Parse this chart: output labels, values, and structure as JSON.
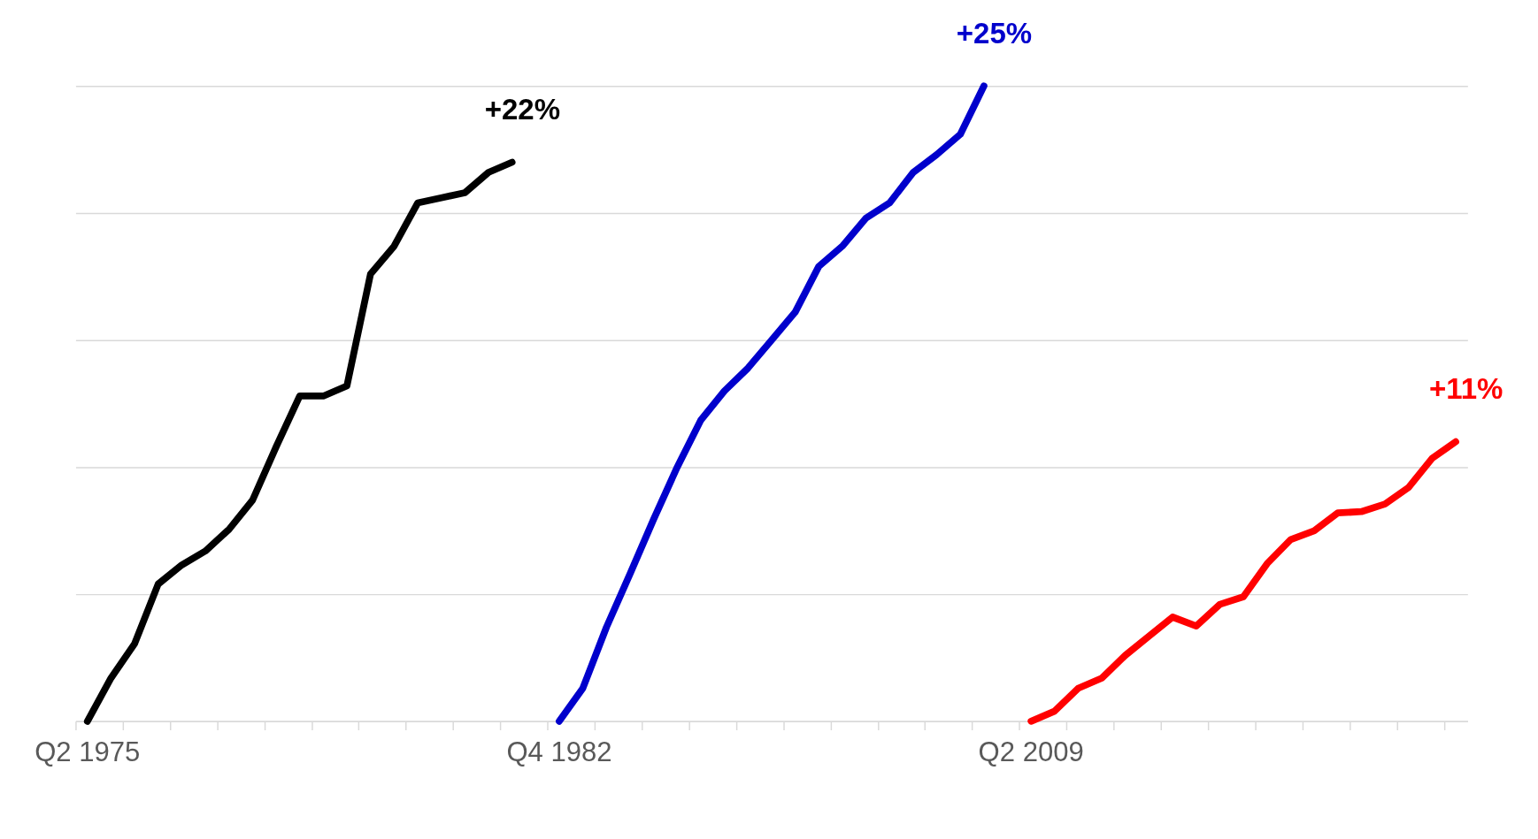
{
  "chart_data": {
    "type": "line",
    "categories": [
      "Q2 1975",
      null,
      null,
      null,
      null,
      null,
      null,
      null,
      null,
      null,
      null,
      null,
      null,
      null,
      null,
      null,
      null,
      null,
      null,
      null,
      "Q4 1982",
      null,
      null,
      null,
      null,
      null,
      null,
      null,
      null,
      null,
      null,
      null,
      null,
      null,
      null,
      null,
      null,
      null,
      null,
      null,
      "Q2 2009",
      null,
      null,
      null,
      null,
      null,
      null,
      null,
      null,
      null,
      null,
      null,
      null,
      null,
      null,
      null,
      null,
      null,
      null
    ],
    "series": [
      {
        "color": "#000000",
        "values": [
          0,
          1.7,
          3.05,
          5.4,
          6.15,
          6.7,
          7.55,
          8.7,
          10.8,
          12.8,
          12.8,
          13.2,
          17.6,
          18.7,
          20.4,
          20.6,
          20.8,
          21.6,
          22,
          null,
          null,
          null,
          null,
          null,
          null,
          null,
          null,
          null,
          null,
          null,
          null,
          null,
          null,
          null,
          null,
          null,
          null,
          null,
          null,
          null,
          null,
          null,
          null,
          null,
          null,
          null,
          null,
          null,
          null,
          null,
          null,
          null,
          null,
          null,
          null,
          null,
          null,
          null,
          null
        ],
        "value_labels": [
          null,
          null,
          null,
          null,
          null,
          null,
          null,
          null,
          null,
          null,
          null,
          null,
          null,
          null,
          null,
          null,
          null,
          null,
          "+22%",
          null,
          null,
          null,
          null,
          null,
          null,
          null,
          null,
          null,
          null,
          null,
          null,
          null,
          null,
          null,
          null,
          null,
          null,
          null,
          null,
          null,
          null,
          null,
          null,
          null,
          null,
          null,
          null,
          null,
          null,
          null,
          null,
          null,
          null,
          null,
          null,
          null,
          null,
          null,
          null
        ]
      },
      {
        "color": "#0000cc",
        "values": [
          null,
          null,
          null,
          null,
          null,
          null,
          null,
          null,
          null,
          null,
          null,
          null,
          null,
          null,
          null,
          null,
          null,
          null,
          null,
          null,
          0,
          1.3,
          3.7,
          5.8,
          7.95,
          10,
          11.85,
          13,
          13.9,
          15,
          16.1,
          17.9,
          18.7,
          19.8,
          20.4,
          21.6,
          22.3,
          23.1,
          25,
          null,
          null,
          null,
          null,
          null,
          null,
          null,
          null,
          null,
          null,
          null,
          null,
          null,
          null,
          null,
          null,
          null,
          null,
          null,
          null
        ],
        "value_labels": [
          null,
          null,
          null,
          null,
          null,
          null,
          null,
          null,
          null,
          null,
          null,
          null,
          null,
          null,
          null,
          null,
          null,
          null,
          null,
          null,
          null,
          null,
          null,
          null,
          null,
          null,
          null,
          null,
          null,
          null,
          null,
          null,
          null,
          null,
          null,
          null,
          null,
          null,
          "+25%",
          null,
          null,
          null,
          null,
          null,
          null,
          null,
          null,
          null,
          null,
          null,
          null,
          null,
          null,
          null,
          null,
          null,
          null,
          null,
          null
        ]
      },
      {
        "color": "#ff0000",
        "values": [
          null,
          null,
          null,
          null,
          null,
          null,
          null,
          null,
          null,
          null,
          null,
          null,
          null,
          null,
          null,
          null,
          null,
          null,
          null,
          null,
          null,
          null,
          null,
          null,
          null,
          null,
          null,
          null,
          null,
          null,
          null,
          null,
          null,
          null,
          null,
          null,
          null,
          null,
          null,
          null,
          0,
          0.4,
          1.3,
          1.7,
          2.6,
          3.35,
          4.1,
          3.75,
          4.6,
          4.9,
          6.2,
          7.15,
          7.5,
          8.2,
          8.25,
          8.55,
          9.2,
          10.35,
          11
        ],
        "value_labels": [
          null,
          null,
          null,
          null,
          null,
          null,
          null,
          null,
          null,
          null,
          null,
          null,
          null,
          null,
          null,
          null,
          null,
          null,
          null,
          null,
          null,
          null,
          null,
          null,
          null,
          null,
          null,
          null,
          null,
          null,
          null,
          null,
          null,
          null,
          null,
          null,
          null,
          null,
          null,
          null,
          null,
          null,
          null,
          null,
          null,
          null,
          null,
          null,
          null,
          null,
          null,
          null,
          null,
          null,
          null,
          null,
          null,
          null,
          "+11%"
        ]
      }
    ],
    "ylim": [
      0,
      25
    ],
    "yticks": [
      {
        "value": 0,
        "label": null
      },
      {
        "value": 5,
        "label": null
      },
      {
        "value": 10,
        "label": null
      },
      {
        "value": 15,
        "label": null
      },
      {
        "value": 20,
        "label": null
      },
      {
        "value": 25,
        "label": null
      }
    ],
    "grid": "y",
    "tick_labels": "x",
    "line_style": "solid"
  }
}
